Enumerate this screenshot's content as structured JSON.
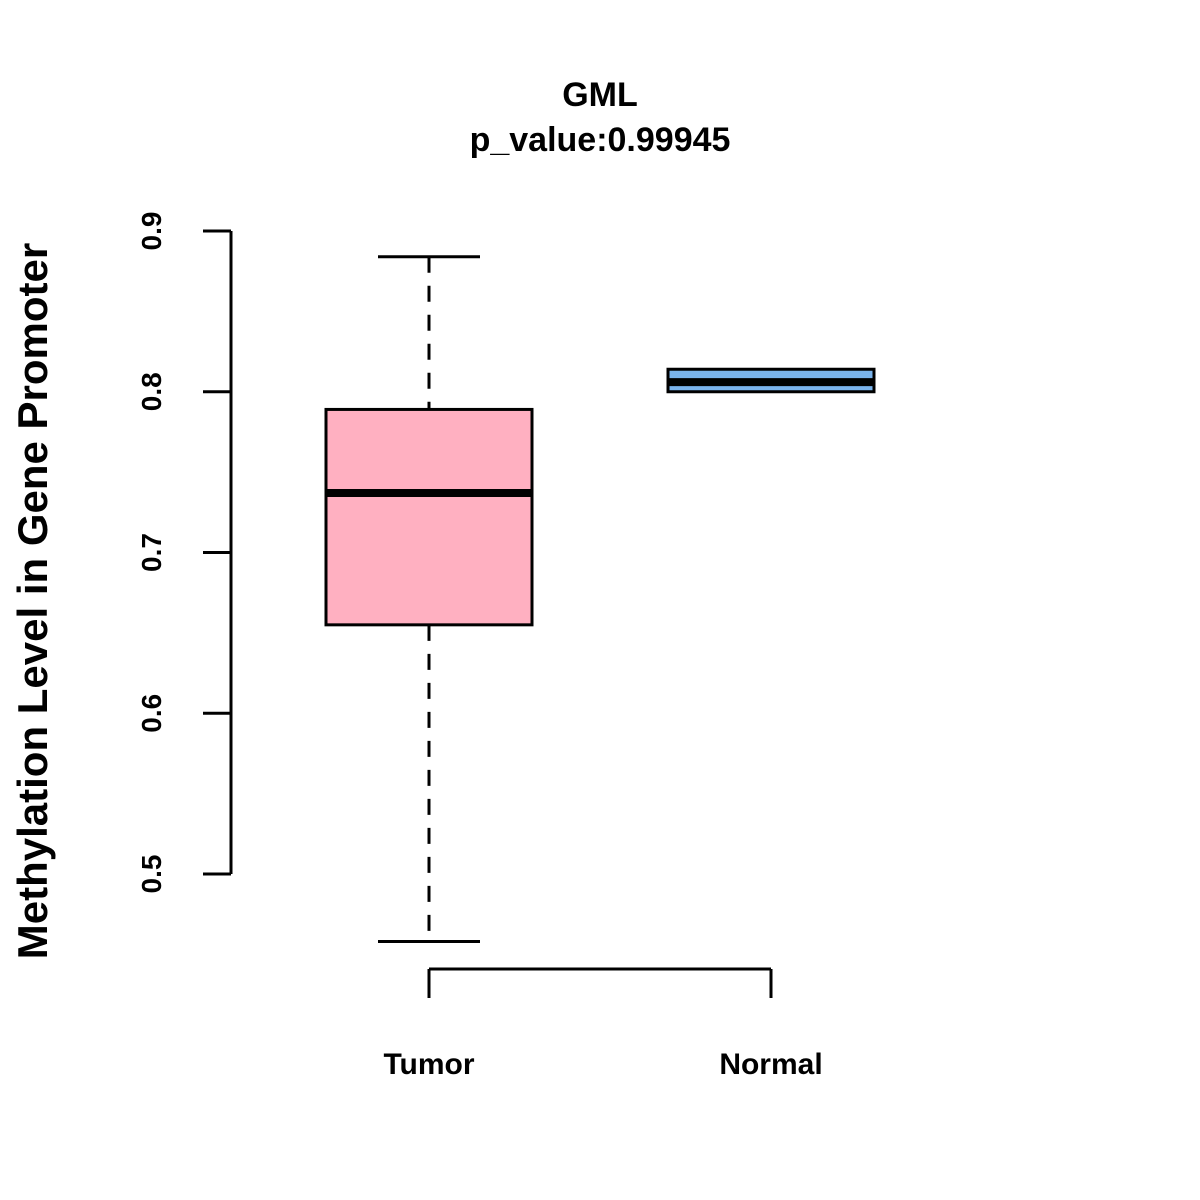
{
  "chart_data": {
    "type": "boxplot",
    "title": "GML",
    "subtitle": "p_value:0.99945",
    "xlabel": "",
    "ylabel": "Methylation Level in Gene Promoter",
    "yticks": [
      0.5,
      0.6,
      0.7,
      0.8,
      0.9
    ],
    "ytick_labels": [
      "0.5",
      "0.6",
      "0.7",
      "0.8",
      "0.9"
    ],
    "grid": false,
    "series": [
      {
        "category": "Tumor",
        "color": "#FFB0C1",
        "whisker_low": 0.458,
        "q1": 0.655,
        "median": 0.737,
        "q3": 0.789,
        "whisker_high": 0.884
      },
      {
        "category": "Normal",
        "color": "#7AB3EB",
        "whisker_low": 0.8,
        "q1": 0.8,
        "median": 0.806,
        "q3": 0.814,
        "whisker_high": 0.814
      }
    ]
  }
}
